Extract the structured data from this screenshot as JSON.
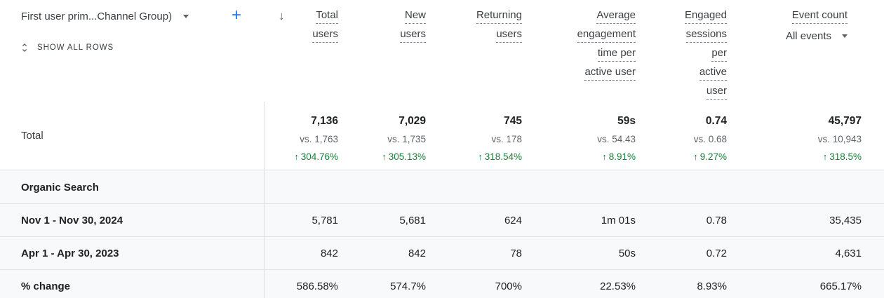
{
  "controls": {
    "dimension_selector": "First user prim...Channel Group)",
    "show_all_rows": "SHOW ALL ROWS"
  },
  "icons": {
    "sort_descending": "↓",
    "change_up": "↑",
    "plus_add": "+"
  },
  "colors": {
    "positive_green": "#188038",
    "link_blue": "#1a73e8",
    "row_background": "#f8f9fa",
    "divider": "#dadce0"
  },
  "table": {
    "columns": [
      {
        "id": "total_users",
        "label": "Total users",
        "lines": [
          "Total",
          "users"
        ]
      },
      {
        "id": "new_users",
        "label": "New users",
        "lines": [
          "New",
          "users"
        ]
      },
      {
        "id": "returning_users",
        "label": "Returning users",
        "lines": [
          "Returning",
          "users"
        ]
      },
      {
        "id": "avg_engagement_time",
        "label": "Average engagement time per active user",
        "lines": [
          "Average",
          "engagement",
          "time per",
          "active user"
        ]
      },
      {
        "id": "engaged_sessions_per_user",
        "label": "Engaged sessions per active user",
        "lines": [
          "Engaged",
          "sessions",
          "per",
          "active",
          "user"
        ]
      },
      {
        "id": "event_count",
        "label": "Event count",
        "lines": [
          "Event count"
        ],
        "filter": "All events"
      }
    ],
    "total_row": {
      "label": "Total",
      "metrics": [
        {
          "value": "7,136",
          "vs": "vs. 1,763",
          "change": "304.76%",
          "direction": "up"
        },
        {
          "value": "7,029",
          "vs": "vs. 1,735",
          "change": "305.13%",
          "direction": "up"
        },
        {
          "value": "745",
          "vs": "vs. 178",
          "change": "318.54%",
          "direction": "up"
        },
        {
          "value": "59s",
          "vs": "vs. 54.43",
          "change": "8.91%",
          "direction": "up"
        },
        {
          "value": "0.74",
          "vs": "vs. 0.68",
          "change": "9.27%",
          "direction": "up"
        },
        {
          "value": "45,797",
          "vs": "vs. 10,943",
          "change": "318.5%",
          "direction": "up"
        }
      ]
    },
    "rows": [
      {
        "label": "Organic Search",
        "values": [
          "",
          "",
          "",
          "",
          "",
          ""
        ]
      },
      {
        "label": "Nov 1 - Nov 30, 2024",
        "values": [
          "5,781",
          "5,681",
          "624",
          "1m 01s",
          "0.78",
          "35,435"
        ]
      },
      {
        "label": "Apr 1 - Apr 30, 2023",
        "values": [
          "842",
          "842",
          "78",
          "50s",
          "0.72",
          "4,631"
        ]
      },
      {
        "label": "% change",
        "values": [
          "586.58%",
          "574.7%",
          "700%",
          "22.53%",
          "8.93%",
          "665.17%"
        ]
      }
    ]
  }
}
